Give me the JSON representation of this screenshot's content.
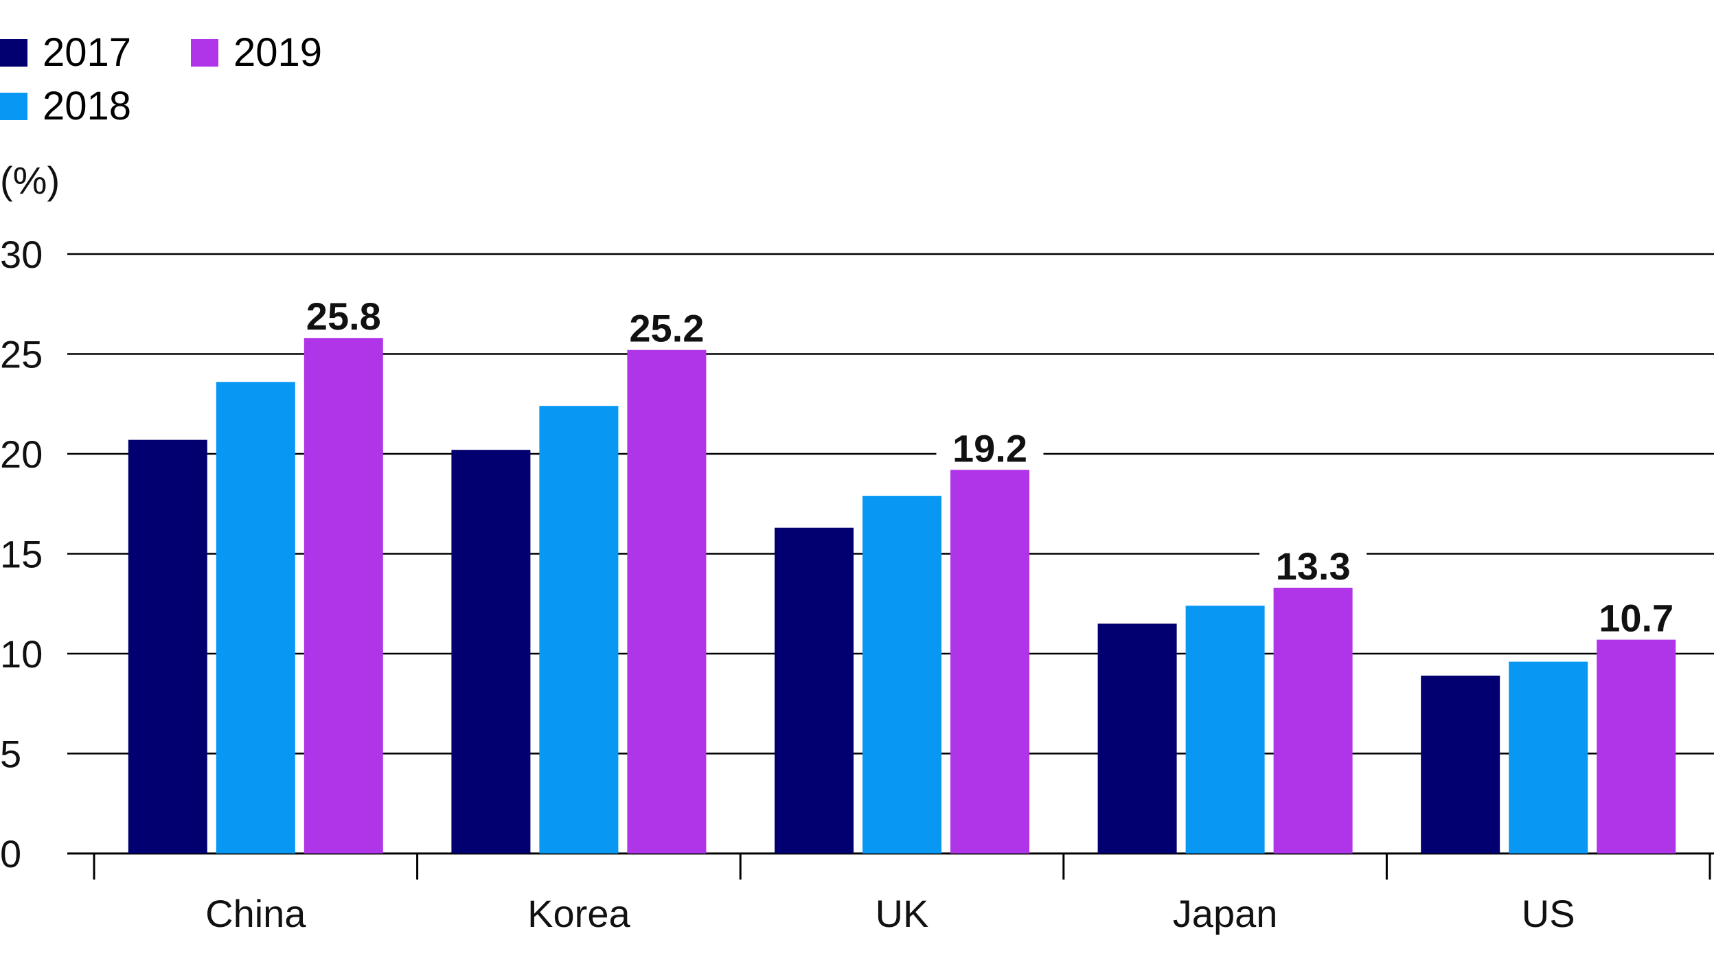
{
  "chart_data": {
    "type": "bar",
    "title": "",
    "xlabel": "",
    "ylabel": "(%)",
    "ylim": [
      0,
      30
    ],
    "yticks": [
      0,
      5,
      10,
      15,
      20,
      25,
      30
    ],
    "grid": true,
    "legend_position": "top-left",
    "categories": [
      "China",
      "Korea",
      "UK",
      "Japan",
      "US"
    ],
    "series": [
      {
        "name": "2017",
        "color": "#020070",
        "values": [
          20.7,
          20.2,
          16.3,
          11.5,
          8.9
        ]
      },
      {
        "name": "2018",
        "color": "#0898f4",
        "values": [
          23.6,
          22.4,
          17.9,
          12.4,
          9.6
        ]
      },
      {
        "name": "2019",
        "color": "#b035e8",
        "values": [
          25.8,
          25.2,
          19.2,
          13.3,
          10.7
        ]
      }
    ],
    "data_labels": {
      "series": "2019",
      "values": [
        "25.8",
        "25.2",
        "19.2",
        "13.3",
        "10.7"
      ]
    }
  }
}
